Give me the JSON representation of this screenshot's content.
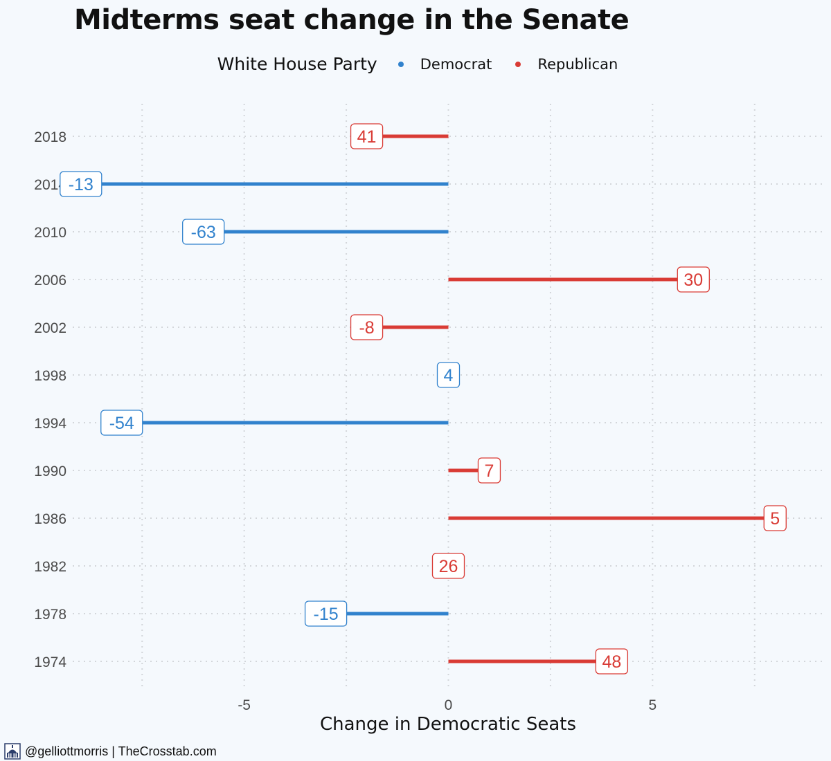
{
  "chart_data": {
    "type": "bar",
    "orientation": "horizontal",
    "title": "Midterms seat change in the Senate",
    "xlabel": "Change in Democratic Seats",
    "ylabel": "",
    "xlim": [
      -9.2,
      9.2
    ],
    "x_ticks": [
      -5,
      0,
      5
    ],
    "x_tick_labels": [
      "-5",
      "0",
      "5"
    ],
    "grid": true,
    "legend": {
      "title": "White House Party",
      "position": "top",
      "entries": [
        {
          "name": "Democrat",
          "color": "#3182cd"
        },
        {
          "name": "Republican",
          "color": "#d93b35"
        }
      ]
    },
    "categories": [
      "2018",
      "2014",
      "2010",
      "2006",
      "2002",
      "1998",
      "1994",
      "1990",
      "1986",
      "1982",
      "1978",
      "1974"
    ],
    "values": [
      -2,
      -9,
      -6,
      6,
      -2,
      0,
      -8,
      1,
      8,
      0,
      -3,
      4
    ],
    "party": [
      "Republican",
      "Democrat",
      "Democrat",
      "Republican",
      "Republican",
      "Democrat",
      "Democrat",
      "Republican",
      "Republican",
      "Republican",
      "Democrat",
      "Republican"
    ],
    "point_labels": [
      "41",
      "-13",
      "-63",
      "30",
      "-8",
      "4",
      "-54",
      "7",
      "5",
      "26",
      "-15",
      "48"
    ]
  },
  "footer": {
    "credit": "@gelliottmorris | TheCrosstab.com",
    "logo_icon": "capitol-building-icon"
  }
}
